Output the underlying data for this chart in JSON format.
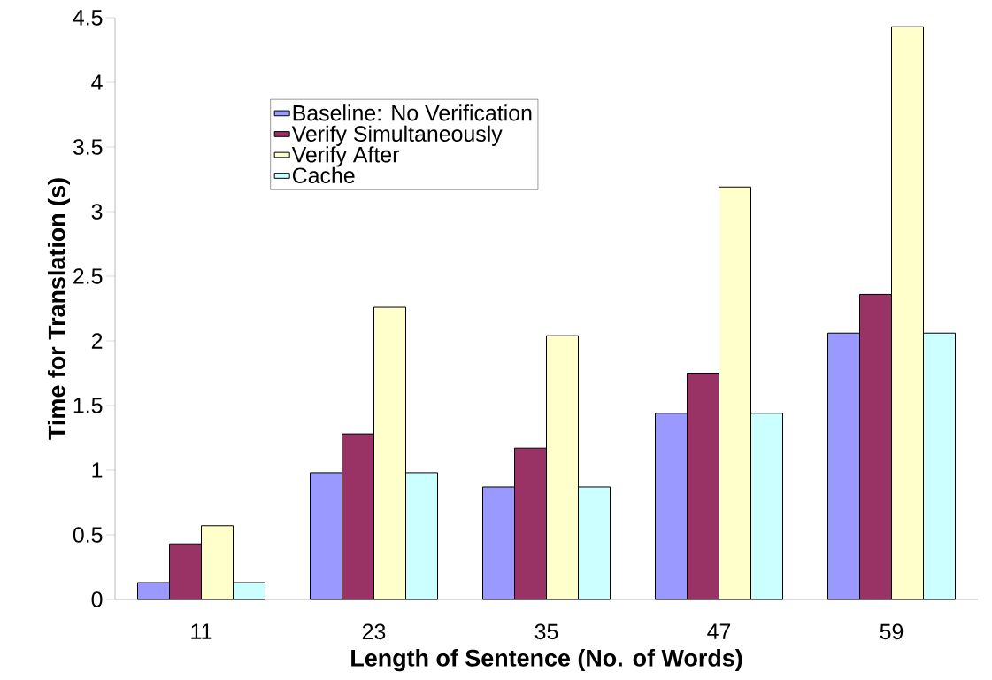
{
  "chart_data": {
    "type": "bar",
    "xlabel": "Length of Sentence (No. of Words)",
    "ylabel": "Time for Translation (s)",
    "categories": [
      "11",
      "23",
      "35",
      "47",
      "59"
    ],
    "series": [
      {
        "name": "Baseline: No Verification",
        "color": "#9999ff",
        "values": [
          0.13,
          0.98,
          0.87,
          1.44,
          2.06
        ]
      },
      {
        "name": "Verify Simultaneously",
        "color": "#993366",
        "values": [
          0.43,
          1.28,
          1.17,
          1.75,
          2.36
        ]
      },
      {
        "name": "Verify After",
        "color": "#ffffcc",
        "values": [
          0.57,
          2.26,
          2.04,
          3.19,
          4.43
        ]
      },
      {
        "name": "Cache",
        "color": "#ccffff",
        "values": [
          0.13,
          0.98,
          0.87,
          1.44,
          2.06
        ]
      }
    ],
    "ylim": [
      0,
      4.5
    ],
    "yticks": [
      0,
      0.5,
      1,
      1.5,
      2,
      2.5,
      3,
      3.5,
      4,
      4.5
    ],
    "legend": "top left",
    "grid": false
  }
}
